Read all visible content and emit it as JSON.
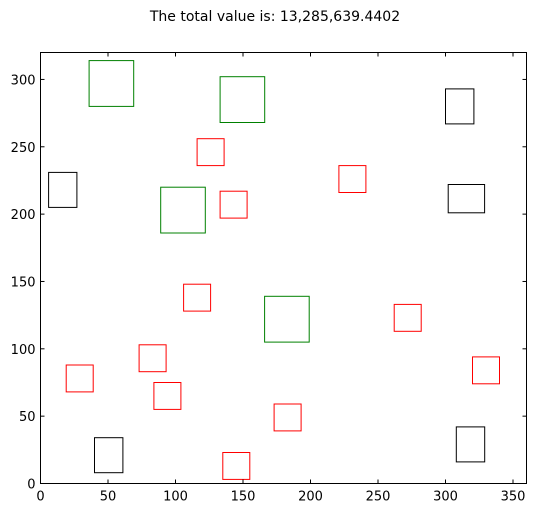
{
  "chart_data": {
    "type": "scatter",
    "title": "The total value is: 13,285,639.4402",
    "xlabel": "",
    "ylabel": "",
    "xlim": [
      0,
      360
    ],
    "ylim": [
      0,
      320
    ],
    "xticks": [
      0,
      50,
      100,
      150,
      200,
      250,
      300,
      350
    ],
    "yticks": [
      0,
      50,
      100,
      150,
      200,
      250,
      300
    ],
    "grid": false,
    "colors": {
      "green": "#008000",
      "red": "#ff0000",
      "black": "#000000"
    },
    "rectangles": [
      {
        "color": "green",
        "x0": 36,
        "x1": 69,
        "y0": 280,
        "y1": 314
      },
      {
        "color": "green",
        "x0": 133,
        "x1": 166,
        "y0": 268,
        "y1": 302
      },
      {
        "color": "green",
        "x0": 89,
        "x1": 122,
        "y0": 186,
        "y1": 220
      },
      {
        "color": "green",
        "x0": 166,
        "x1": 199,
        "y0": 105,
        "y1": 139
      },
      {
        "color": "red",
        "x0": 116,
        "x1": 136,
        "y0": 236,
        "y1": 256
      },
      {
        "color": "red",
        "x0": 221,
        "x1": 241,
        "y0": 216,
        "y1": 236
      },
      {
        "color": "red",
        "x0": 133,
        "x1": 153,
        "y0": 197,
        "y1": 217
      },
      {
        "color": "red",
        "x0": 106,
        "x1": 126,
        "y0": 128,
        "y1": 148
      },
      {
        "color": "red",
        "x0": 262,
        "x1": 282,
        "y0": 113,
        "y1": 133
      },
      {
        "color": "red",
        "x0": 73,
        "x1": 93,
        "y0": 83,
        "y1": 103
      },
      {
        "color": "red",
        "x0": 320,
        "x1": 340,
        "y0": 74,
        "y1": 94
      },
      {
        "color": "red",
        "x0": 19,
        "x1": 39,
        "y0": 68,
        "y1": 88
      },
      {
        "color": "red",
        "x0": 84,
        "x1": 104,
        "y0": 55,
        "y1": 75
      },
      {
        "color": "red",
        "x0": 173,
        "x1": 193,
        "y0": 39,
        "y1": 59
      },
      {
        "color": "red",
        "x0": 135,
        "x1": 155,
        "y0": 3,
        "y1": 23
      },
      {
        "color": "black",
        "x0": 6,
        "x1": 27,
        "y0": 205,
        "y1": 231
      },
      {
        "color": "black",
        "x0": 300,
        "x1": 321,
        "y0": 267,
        "y1": 293
      },
      {
        "color": "black",
        "x0": 302,
        "x1": 329,
        "y0": 201,
        "y1": 222
      },
      {
        "color": "black",
        "x0": 40,
        "x1": 61,
        "y0": 8,
        "y1": 34
      },
      {
        "color": "black",
        "x0": 308,
        "x1": 329,
        "y0": 16,
        "y1": 42
      }
    ]
  }
}
